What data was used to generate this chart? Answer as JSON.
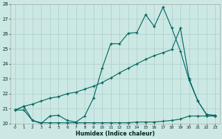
{
  "xlabel": "Humidex (Indice chaleur)",
  "background_color": "#cce8e4",
  "grid_color": "#aaccc8",
  "line_color": "#006660",
  "x": [
    0,
    1,
    2,
    3,
    4,
    5,
    6,
    7,
    8,
    9,
    10,
    11,
    12,
    13,
    14,
    15,
    16,
    17,
    18,
    19,
    20,
    21,
    22,
    23
  ],
  "line1": [
    20.9,
    21.15,
    20.2,
    20.0,
    20.5,
    20.55,
    20.2,
    20.1,
    20.5,
    21.7,
    23.7,
    25.35,
    25.35,
    26.05,
    26.1,
    27.3,
    26.5,
    27.8,
    26.4,
    24.85,
    22.9,
    21.5,
    20.6,
    20.55
  ],
  "line2": [
    20.9,
    21.15,
    21.3,
    21.5,
    21.7,
    21.8,
    22.0,
    22.1,
    22.3,
    22.5,
    22.75,
    23.05,
    23.4,
    23.7,
    24.0,
    24.3,
    24.55,
    24.75,
    24.95,
    26.4,
    23.0,
    21.5,
    20.6,
    20.5
  ],
  "line3": [
    20.9,
    20.9,
    20.2,
    20.05,
    20.05,
    20.05,
    20.05,
    20.05,
    20.05,
    20.05,
    20.05,
    20.05,
    20.05,
    20.05,
    20.1,
    20.1,
    20.1,
    20.15,
    20.2,
    20.3,
    20.5,
    20.5,
    20.5,
    20.5
  ],
  "ylim": [
    20,
    28
  ],
  "yticks": [
    20,
    21,
    22,
    23,
    24,
    25,
    26,
    27,
    28
  ],
  "xticks": [
    0,
    1,
    2,
    3,
    4,
    5,
    6,
    7,
    8,
    9,
    10,
    11,
    12,
    13,
    14,
    15,
    16,
    17,
    18,
    19,
    20,
    21,
    22,
    23
  ]
}
